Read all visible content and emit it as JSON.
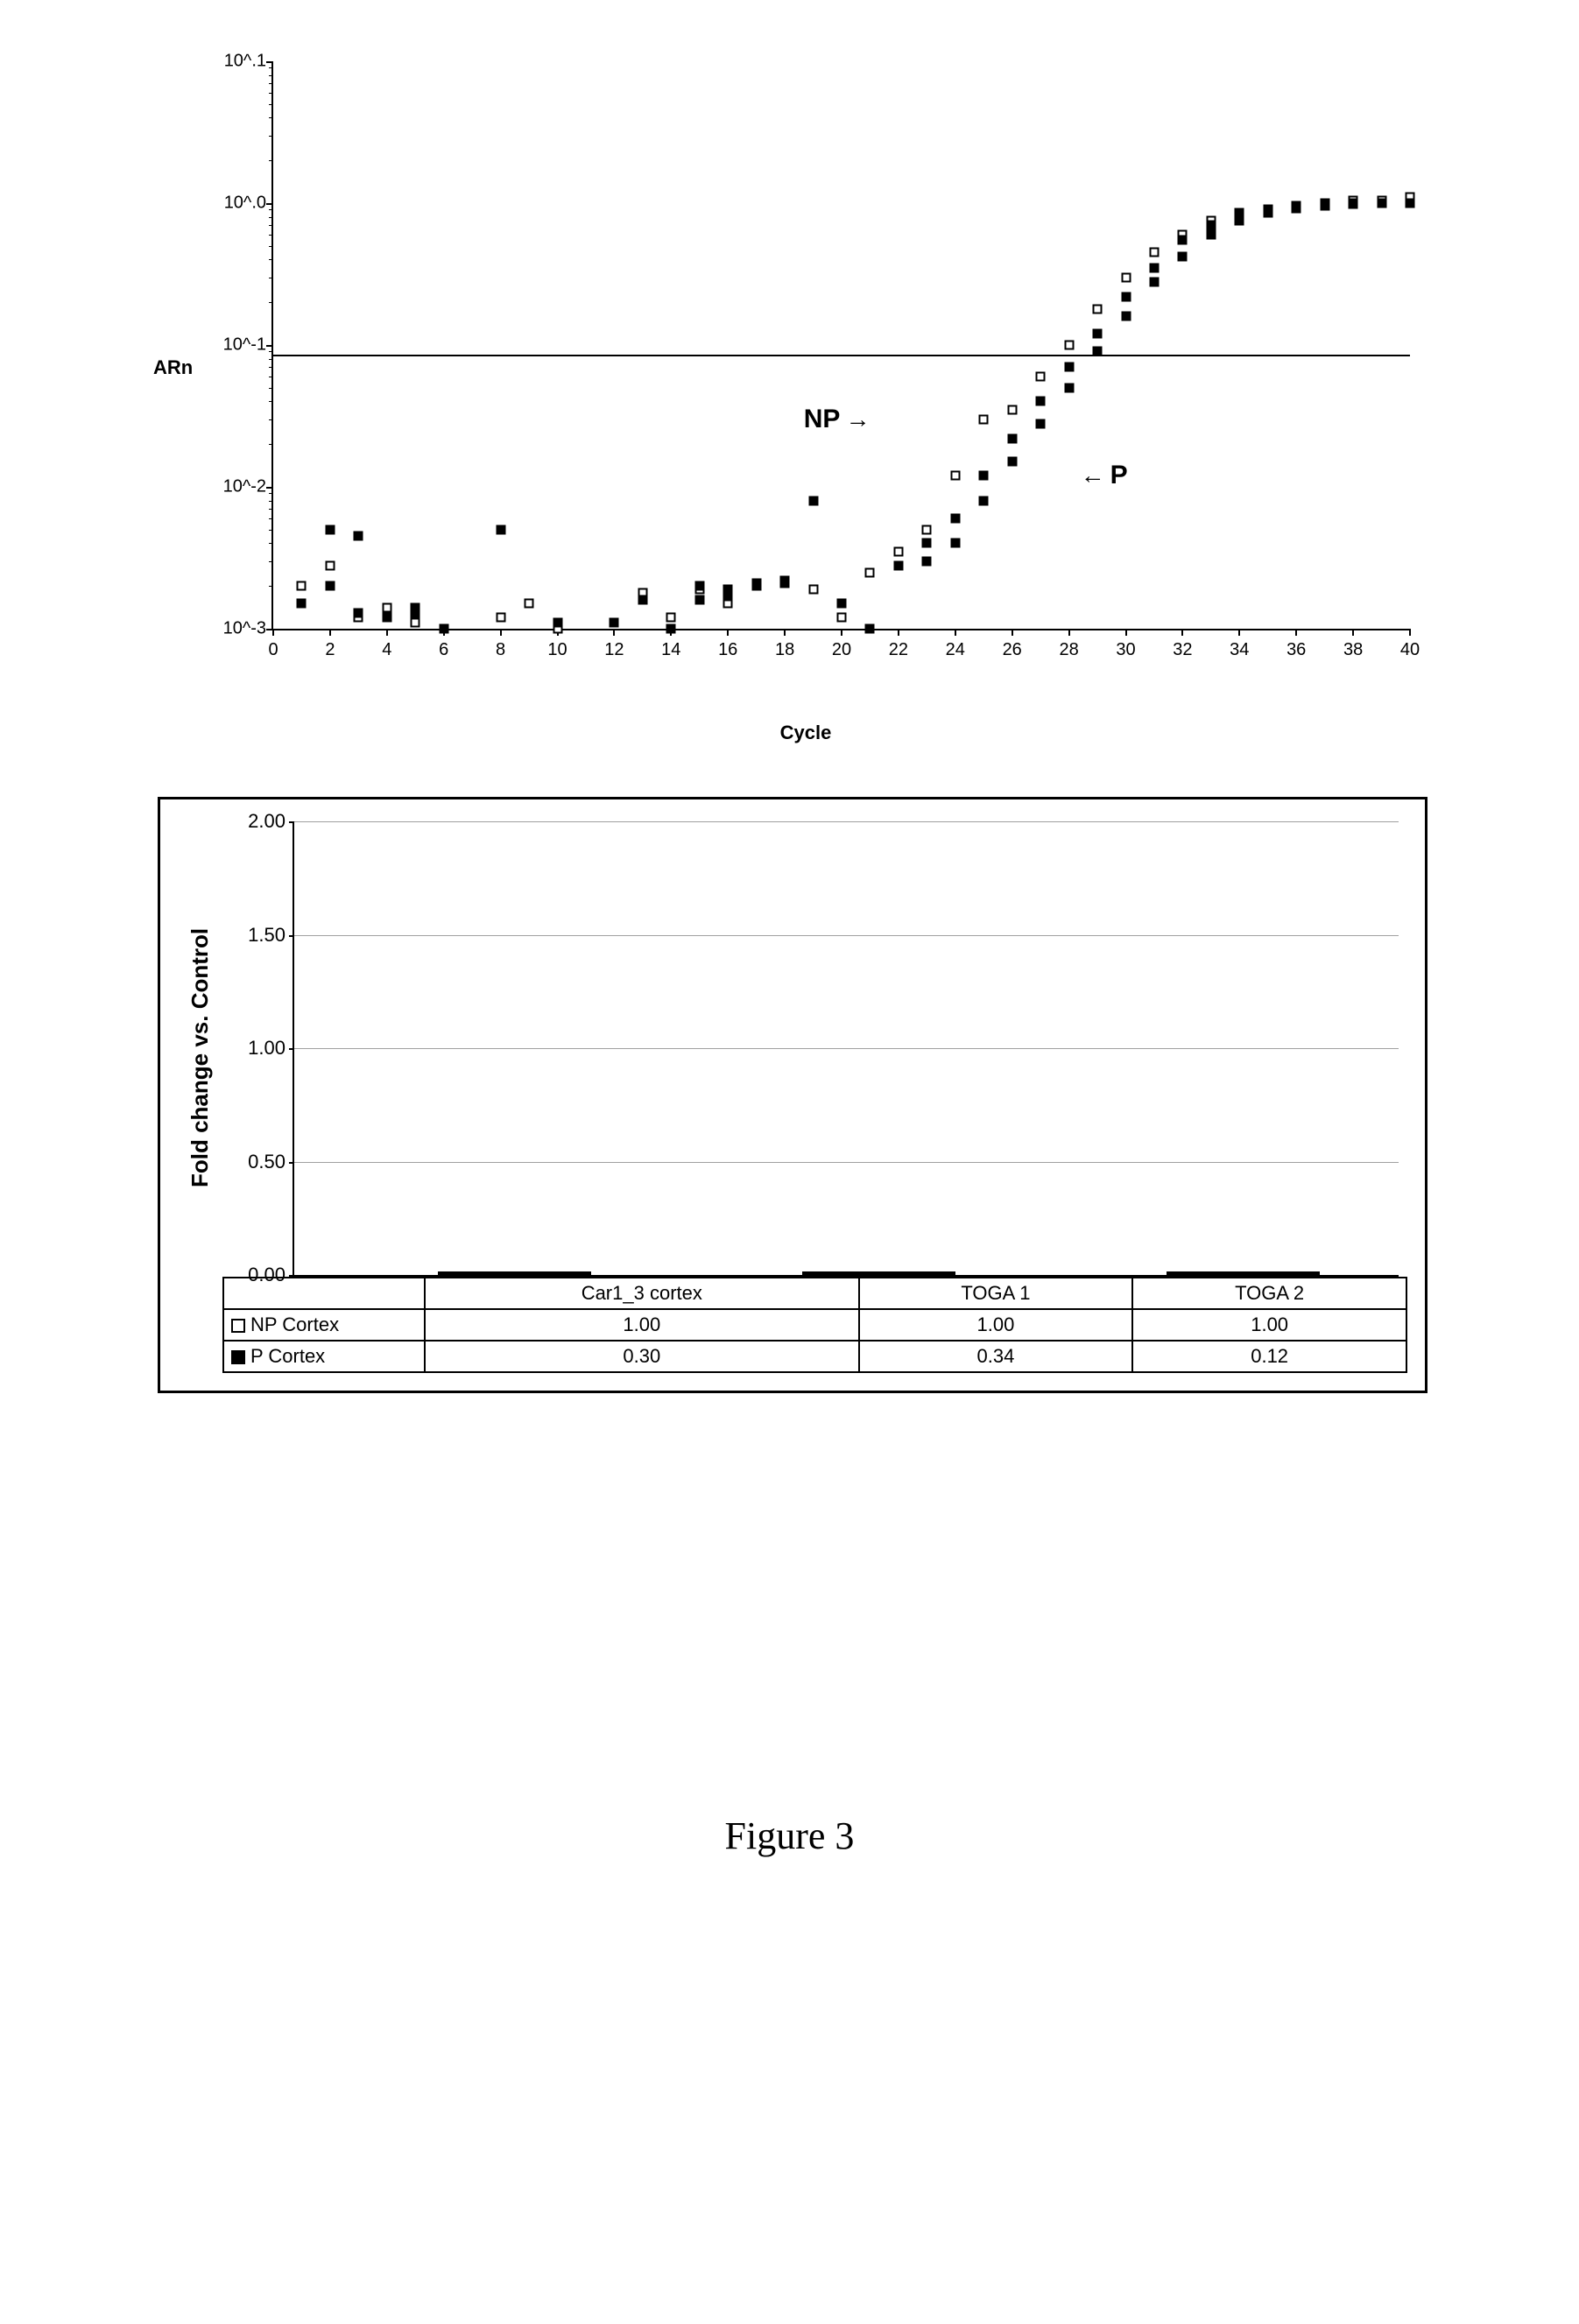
{
  "amp_plot": {
    "type": "scatter-log",
    "y_label": "ARn",
    "x_label": "Cycle",
    "xlim": [
      0,
      40
    ],
    "x_tick_step": 2,
    "y_log_min_exp": -3,
    "y_log_max_exp": 1,
    "y_tick_labels": [
      "10^-3",
      "10^-2",
      "10^-1",
      "10^.0",
      "10^.1"
    ],
    "threshold_y": 0.085,
    "axis_color": "#000000",
    "background_color": "#ffffff",
    "point_size": 11,
    "annotations": [
      {
        "text": "NP",
        "cycle": 25.0,
        "y": 0.03,
        "arrow": "→",
        "side": "left"
      },
      {
        "text": "P",
        "cycle": 28.0,
        "y": 0.012,
        "arrow": "←",
        "side": "right"
      }
    ],
    "series": [
      {
        "name": "NP",
        "marker": "open-square",
        "fill_color": "#ffffff",
        "border_color": "#000000",
        "points": [
          [
            1,
            0.002
          ],
          [
            2,
            0.0028
          ],
          [
            3,
            0.0012
          ],
          [
            4,
            0.0014
          ],
          [
            5,
            0.0011
          ],
          [
            8,
            0.0012
          ],
          [
            9,
            0.0015
          ],
          [
            10,
            0.001
          ],
          [
            12,
            0.0011
          ],
          [
            13,
            0.0018
          ],
          [
            14,
            0.0012
          ],
          [
            15,
            0.0019
          ],
          [
            16,
            0.0015
          ],
          [
            17,
            0.002
          ],
          [
            18,
            0.0022
          ],
          [
            19,
            0.0019
          ],
          [
            20,
            0.0012
          ],
          [
            21,
            0.0025
          ],
          [
            22,
            0.0035
          ],
          [
            23,
            0.005
          ],
          [
            24,
            0.012
          ],
          [
            25,
            0.03
          ],
          [
            26,
            0.035
          ],
          [
            27,
            0.06
          ],
          [
            28,
            0.1
          ],
          [
            29,
            0.18
          ],
          [
            30,
            0.3
          ],
          [
            31,
            0.45
          ],
          [
            32,
            0.6
          ],
          [
            33,
            0.75
          ],
          [
            34,
            0.82
          ],
          [
            35,
            0.9
          ],
          [
            36,
            0.96
          ],
          [
            37,
            1.0
          ],
          [
            38,
            1.05
          ],
          [
            39,
            1.05
          ],
          [
            40,
            1.1
          ]
        ]
      },
      {
        "name": "P",
        "marker": "filled-square",
        "fill_color": "#000000",
        "border_color": "#000000",
        "points": [
          [
            1,
            0.0015
          ],
          [
            2,
            0.005
          ],
          [
            3,
            0.0045
          ],
          [
            4,
            0.0012
          ],
          [
            5,
            0.0013
          ],
          [
            6,
            0.001
          ],
          [
            8,
            0.005
          ],
          [
            10,
            0.0011
          ],
          [
            12,
            0.0011
          ],
          [
            13,
            0.0016
          ],
          [
            14,
            0.001
          ],
          [
            15,
            0.002
          ],
          [
            16,
            0.0017
          ],
          [
            17,
            0.0021
          ],
          [
            18,
            0.0021
          ],
          [
            19,
            0.008
          ],
          [
            20,
            0.0015
          ],
          [
            21,
            0.001
          ],
          [
            22,
            0.0028
          ],
          [
            23,
            0.004
          ],
          [
            24,
            0.006
          ],
          [
            25,
            0.012
          ],
          [
            26,
            0.022
          ],
          [
            27,
            0.04
          ],
          [
            28,
            0.07
          ],
          [
            29,
            0.12
          ],
          [
            30,
            0.22
          ],
          [
            31,
            0.35
          ],
          [
            32,
            0.55
          ],
          [
            33,
            0.7
          ],
          [
            34,
            0.85
          ],
          [
            35,
            0.9
          ],
          [
            36,
            0.95
          ],
          [
            37,
            0.98
          ],
          [
            38,
            1.0
          ],
          [
            39,
            1.0
          ],
          [
            40,
            1.0
          ]
        ]
      },
      {
        "name": "P2",
        "marker": "filled-square",
        "fill_color": "#000000",
        "border_color": "#000000",
        "points": [
          [
            2,
            0.002
          ],
          [
            3,
            0.0013
          ],
          [
            5,
            0.0014
          ],
          [
            15,
            0.0016
          ],
          [
            16,
            0.0019
          ],
          [
            17,
            0.002
          ],
          [
            18,
            0.0022
          ],
          [
            23,
            0.003
          ],
          [
            24,
            0.004
          ],
          [
            25,
            0.008
          ],
          [
            26,
            0.015
          ],
          [
            27,
            0.028
          ],
          [
            28,
            0.05
          ],
          [
            29,
            0.09
          ],
          [
            30,
            0.16
          ],
          [
            31,
            0.28
          ],
          [
            32,
            0.42
          ],
          [
            33,
            0.6
          ],
          [
            34,
            0.75
          ],
          [
            35,
            0.85
          ],
          [
            36,
            0.92
          ],
          [
            37,
            0.96
          ],
          [
            38,
            0.98
          ],
          [
            39,
            1.0
          ],
          [
            40,
            1.0
          ]
        ]
      }
    ]
  },
  "bar_chart": {
    "type": "bar",
    "y_label": "Fold change vs. Control",
    "ylim": [
      0,
      2.0
    ],
    "ytick_step": 0.5,
    "ytick_labels": [
      "0.00",
      "0.50",
      "1.00",
      "1.50",
      "2.00"
    ],
    "border_color": "#000000",
    "grid_color": "#a0a0a0",
    "background_color": "#ffffff",
    "np_bar_width": 110,
    "p_bar_width": 65,
    "np_bar_color": "#a0a0a0",
    "p_bar_color": "#000000",
    "categories": [
      "Car1_3 cortex",
      "TOGA 1",
      "TOGA 2"
    ],
    "group_positions_pct": [
      13,
      46,
      79
    ],
    "series": [
      {
        "name": "NP Cortex",
        "legend_fill": "open",
        "values": [
          1.0,
          1.0,
          1.0
        ]
      },
      {
        "name": "P Cortex",
        "legend_fill": "filled",
        "values": [
          0.3,
          0.34,
          0.12
        ]
      }
    ]
  },
  "caption": "Figure 3"
}
